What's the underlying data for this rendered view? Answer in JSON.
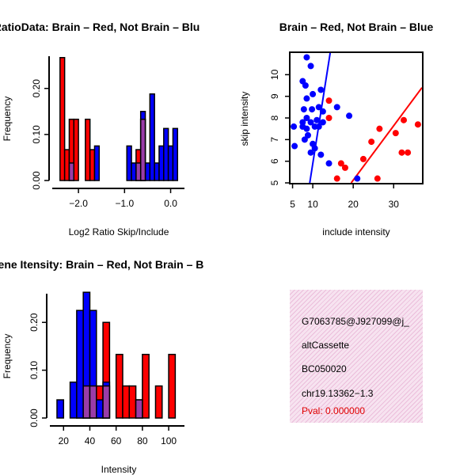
{
  "colors": {
    "red": "#ff0000",
    "blue": "#0000ff",
    "overlap": "#9a3ca8",
    "panel": "#f7e3f0"
  },
  "chart_data": [
    {
      "type": "bar",
      "title": "RatioData: Brain – Red, Not Brain – Blu",
      "xlabel": "Log2 Ratio Skip/Include",
      "ylabel": "Frequency",
      "xlim": [
        -2.5,
        0.3
      ],
      "ylim": [
        0,
        0.27
      ],
      "xticks": [
        {
          "v": -2.0,
          "label": "−2.0"
        },
        {
          "v": -1.0,
          "label": "−1.0"
        },
        {
          "v": 0.0,
          "label": "0.0"
        }
      ],
      "yticks": [
        {
          "v": 0.0,
          "label": "0.00"
        },
        {
          "v": 0.1,
          "label": "0.10"
        },
        {
          "v": 0.2,
          "label": "0.20"
        }
      ],
      "series": [
        {
          "name": "Brain",
          "color": "red",
          "bars": [
            {
              "x0": -2.4,
              "x1": -2.3,
              "h": 0.267
            },
            {
              "x0": -2.3,
              "x1": -2.2,
              "h": 0.067
            },
            {
              "x0": -2.2,
              "x1": -2.1,
              "h": 0.133
            },
            {
              "x0": -2.1,
              "x1": -2.0,
              "h": 0.133
            },
            {
              "x0": -1.85,
              "x1": -1.75,
              "h": 0.133
            },
            {
              "x0": -1.75,
              "x1": -1.65,
              "h": 0.067
            },
            {
              "x0": -0.75,
              "x1": -0.65,
              "h": 0.067
            },
            {
              "x0": -0.65,
              "x1": -0.55,
              "h": 0.133
            }
          ]
        },
        {
          "name": "Not Brain",
          "color": "blue",
          "bars": [
            {
              "x0": -1.65,
              "x1": -1.55,
              "h": 0.075
            },
            {
              "x0": -0.95,
              "x1": -0.85,
              "h": 0.075
            },
            {
              "x0": -0.85,
              "x1": -0.75,
              "h": 0.038
            },
            {
              "x0": -0.65,
              "x1": -0.55,
              "h": 0.15
            },
            {
              "x0": -0.55,
              "x1": -0.45,
              "h": 0.038
            },
            {
              "x0": -0.45,
              "x1": -0.35,
              "h": 0.188
            },
            {
              "x0": -0.35,
              "x1": -0.25,
              "h": 0.038
            },
            {
              "x0": -0.25,
              "x1": -0.15,
              "h": 0.075
            },
            {
              "x0": -0.15,
              "x1": -0.05,
              "h": 0.113
            },
            {
              "x0": -0.05,
              "x1": 0.05,
              "h": 0.075
            },
            {
              "x0": 0.05,
              "x1": 0.15,
              "h": 0.113
            }
          ]
        },
        {
          "name": "Overlap",
          "color": "overlap",
          "bars": [
            {
              "x0": -2.2,
              "x1": -2.1,
              "h": 0.038
            },
            {
              "x0": -0.75,
              "x1": -0.65,
              "h": 0.038
            },
            {
              "x0": -0.65,
              "x1": -0.55,
              "h": 0.133
            }
          ]
        }
      ]
    },
    {
      "type": "scatter",
      "title": "Brain – Red, Not Brain – Blue",
      "xlabel": "include intensity",
      "ylabel": "skip intensity",
      "xlim": [
        4.5,
        37
      ],
      "ylim": [
        5,
        11
      ],
      "xticks": [
        5,
        10,
        20,
        30
      ],
      "yticks": [
        5,
        6,
        7,
        8,
        9,
        10
      ],
      "series": [
        {
          "name": "Not Brain",
          "color": "blue",
          "points": [
            [
              8.5,
              10.8
            ],
            [
              9.5,
              10.4
            ],
            [
              7.5,
              9.7
            ],
            [
              8.2,
              9.5
            ],
            [
              12,
              9.3
            ],
            [
              10,
              9.1
            ],
            [
              8.5,
              8.9
            ],
            [
              11.5,
              8.5
            ],
            [
              7.8,
              8.4
            ],
            [
              9.8,
              8.4
            ],
            [
              12.5,
              8.3
            ],
            [
              16,
              8.5
            ],
            [
              19,
              8.1
            ],
            [
              8.5,
              8
            ],
            [
              11,
              7.9
            ],
            [
              7.5,
              7.8
            ],
            [
              5.3,
              7.6
            ],
            [
              7.5,
              7.6
            ],
            [
              8.5,
              7.5
            ],
            [
              9.5,
              7.8
            ],
            [
              10.5,
              7.6
            ],
            [
              11.5,
              7.6
            ],
            [
              12.5,
              7.8
            ],
            [
              8.8,
              7.2
            ],
            [
              8,
              7
            ],
            [
              10,
              6.8
            ],
            [
              10.5,
              6.6
            ],
            [
              9.5,
              6.4
            ],
            [
              5.5,
              6.7
            ],
            [
              12,
              6.3
            ],
            [
              14,
              5.9
            ],
            [
              21,
              5.2
            ]
          ]
        },
        {
          "name": "Brain",
          "color": "red",
          "points": [
            [
              14,
              8.8
            ],
            [
              14,
              8
            ],
            [
              17,
              5.9
            ],
            [
              18,
              5.7
            ],
            [
              16,
              5.2
            ],
            [
              26,
              5.2
            ],
            [
              22.5,
              6.1
            ],
            [
              24.5,
              6.9
            ],
            [
              26.5,
              7.5
            ],
            [
              30.5,
              7.3
            ],
            [
              32.5,
              7.9
            ],
            [
              32,
              6.4
            ],
            [
              33.5,
              6.4
            ],
            [
              36,
              7.7
            ]
          ]
        }
      ],
      "fits": [
        {
          "color": "blue",
          "p1": [
            9.25,
            5
          ],
          "p2": [
            14.3,
            11
          ]
        },
        {
          "color": "red",
          "p1": [
            19.5,
            5
          ],
          "p2": [
            37,
            9.4
          ]
        }
      ]
    },
    {
      "type": "bar",
      "title": "Gene Itensity: Brain – Red, Not Brain – B",
      "xlabel": "Intensity",
      "ylabel": "Frequency",
      "xlim": [
        12,
        112
      ],
      "ylim": [
        0,
        0.26
      ],
      "xticks": [
        {
          "v": 20,
          "label": "20"
        },
        {
          "v": 40,
          "label": "40"
        },
        {
          "v": 60,
          "label": "60"
        },
        {
          "v": 80,
          "label": "80"
        },
        {
          "v": 100,
          "label": "100"
        }
      ],
      "yticks": [
        {
          "v": 0.0,
          "label": "0.00"
        },
        {
          "v": 0.1,
          "label": "0.10"
        },
        {
          "v": 0.2,
          "label": "0.20"
        }
      ],
      "series": [
        {
          "name": "Brain",
          "color": "red",
          "bars": [
            {
              "x0": 30,
              "x1": 35,
              "h": 0.067
            },
            {
              "x0": 35,
              "x1": 40,
              "h": 0.067
            },
            {
              "x0": 45,
              "x1": 50,
              "h": 0.067
            },
            {
              "x0": 50,
              "x1": 55,
              "h": 0.2
            },
            {
              "x0": 60,
              "x1": 65,
              "h": 0.133
            },
            {
              "x0": 65,
              "x1": 70,
              "h": 0.067
            },
            {
              "x0": 70,
              "x1": 75,
              "h": 0.067
            },
            {
              "x0": 80,
              "x1": 85,
              "h": 0.133
            },
            {
              "x0": 90,
              "x1": 95,
              "h": 0.067
            },
            {
              "x0": 100,
              "x1": 105,
              "h": 0.133
            }
          ]
        },
        {
          "name": "Not Brain",
          "color": "blue",
          "bars": [
            {
              "x0": 15,
              "x1": 20,
              "h": 0.038
            },
            {
              "x0": 25,
              "x1": 30,
              "h": 0.075
            },
            {
              "x0": 30,
              "x1": 35,
              "h": 0.225
            },
            {
              "x0": 35,
              "x1": 40,
              "h": 0.263
            },
            {
              "x0": 40,
              "x1": 45,
              "h": 0.225
            },
            {
              "x0": 45,
              "x1": 50,
              "h": 0.038
            },
            {
              "x0": 50,
              "x1": 55,
              "h": 0.075
            },
            {
              "x0": 75,
              "x1": 80,
              "h": 0.038
            }
          ]
        },
        {
          "name": "Overlap",
          "color": "overlap",
          "bars": [
            {
              "x0": 35,
              "x1": 40,
              "h": 0.067
            },
            {
              "x0": 40,
              "x1": 45,
              "h": 0.067
            },
            {
              "x0": 50,
              "x1": 55,
              "h": 0.067
            },
            {
              "x0": 75,
              "x1": 80,
              "h": 0.038
            }
          ]
        }
      ]
    }
  ],
  "info_panel": {
    "lines": [
      "G7063785@J927099@j_",
      "altCassette",
      "BC050020",
      "chr19.13362−1.3"
    ],
    "pval": "Pval: 0.000000"
  }
}
